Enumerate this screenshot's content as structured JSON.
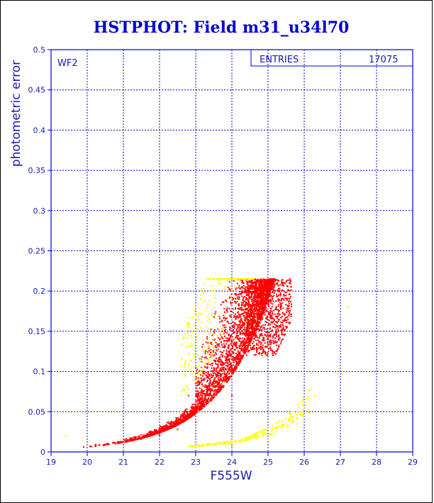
{
  "chart_data": {
    "type": "scatter",
    "title": "HSTPHOT: Field m31_u34l70",
    "xlabel": "F555W",
    "ylabel": "photometric error",
    "xlim": [
      19,
      29
    ],
    "ylim": [
      0,
      0.5
    ],
    "x_ticks": [
      "19",
      "20",
      "21",
      "22",
      "23",
      "24",
      "25",
      "26",
      "27",
      "28",
      "29"
    ],
    "y_ticks": [
      "0",
      "0.05",
      "0.1",
      "0.15",
      "0.2",
      "0.25",
      "0.3",
      "0.35",
      "0.4",
      "0.45",
      "0.5"
    ],
    "grid": true,
    "panel_label": "WF2",
    "stats_box": {
      "label": "ENTRIES",
      "value": "17075",
      "position": "top-right"
    },
    "series": [
      {
        "color": "#ff0000",
        "description": "main stellar sequence",
        "values": [
          {
            "x": 19.9,
            "y": 0.006
          },
          {
            "x": 20.5,
            "y": 0.009
          },
          {
            "x": 21.0,
            "y": 0.012
          },
          {
            "x": 21.5,
            "y": 0.016
          },
          {
            "x": 22.0,
            "y": 0.021
          },
          {
            "x": 22.5,
            "y": 0.028
          },
          {
            "x": 23.0,
            "y": 0.037
          },
          {
            "x": 23.5,
            "y": 0.05
          },
          {
            "x": 24.0,
            "y": 0.07
          },
          {
            "x": 24.5,
            "y": 0.1
          },
          {
            "x": 25.0,
            "y": 0.14
          },
          {
            "x": 25.4,
            "y": 0.185
          },
          {
            "x": 25.6,
            "y": 0.215
          },
          {
            "x": 24.8,
            "y": 0.215
          },
          {
            "x": 24.3,
            "y": 0.2
          },
          {
            "x": 23.8,
            "y": 0.15
          },
          {
            "x": 23.2,
            "y": 0.1
          },
          {
            "x": 22.8,
            "y": 0.07
          }
        ]
      },
      {
        "color": "#ffff00",
        "description": "outliers / low-error branch",
        "values": [
          {
            "x": 19.4,
            "y": 0.02
          },
          {
            "x": 22.0,
            "y": 0.05
          },
          {
            "x": 22.6,
            "y": 0.07
          },
          {
            "x": 23.0,
            "y": 0.1
          },
          {
            "x": 23.5,
            "y": 0.14
          },
          {
            "x": 24.0,
            "y": 0.19
          },
          {
            "x": 24.4,
            "y": 0.215
          },
          {
            "x": 23.0,
            "y": 0.005
          },
          {
            "x": 24.0,
            "y": 0.007
          },
          {
            "x": 25.0,
            "y": 0.015
          },
          {
            "x": 25.8,
            "y": 0.035
          },
          {
            "x": 26.3,
            "y": 0.07
          },
          {
            "x": 27.2,
            "y": 0.18
          }
        ]
      }
    ]
  },
  "colors": {
    "axis_text": "#1a1aaa",
    "title": "#0000cc",
    "grid": "#0000cc",
    "frame": "#0000cc",
    "red_points": "#ff0000",
    "yellow_points": "#ffff00"
  }
}
